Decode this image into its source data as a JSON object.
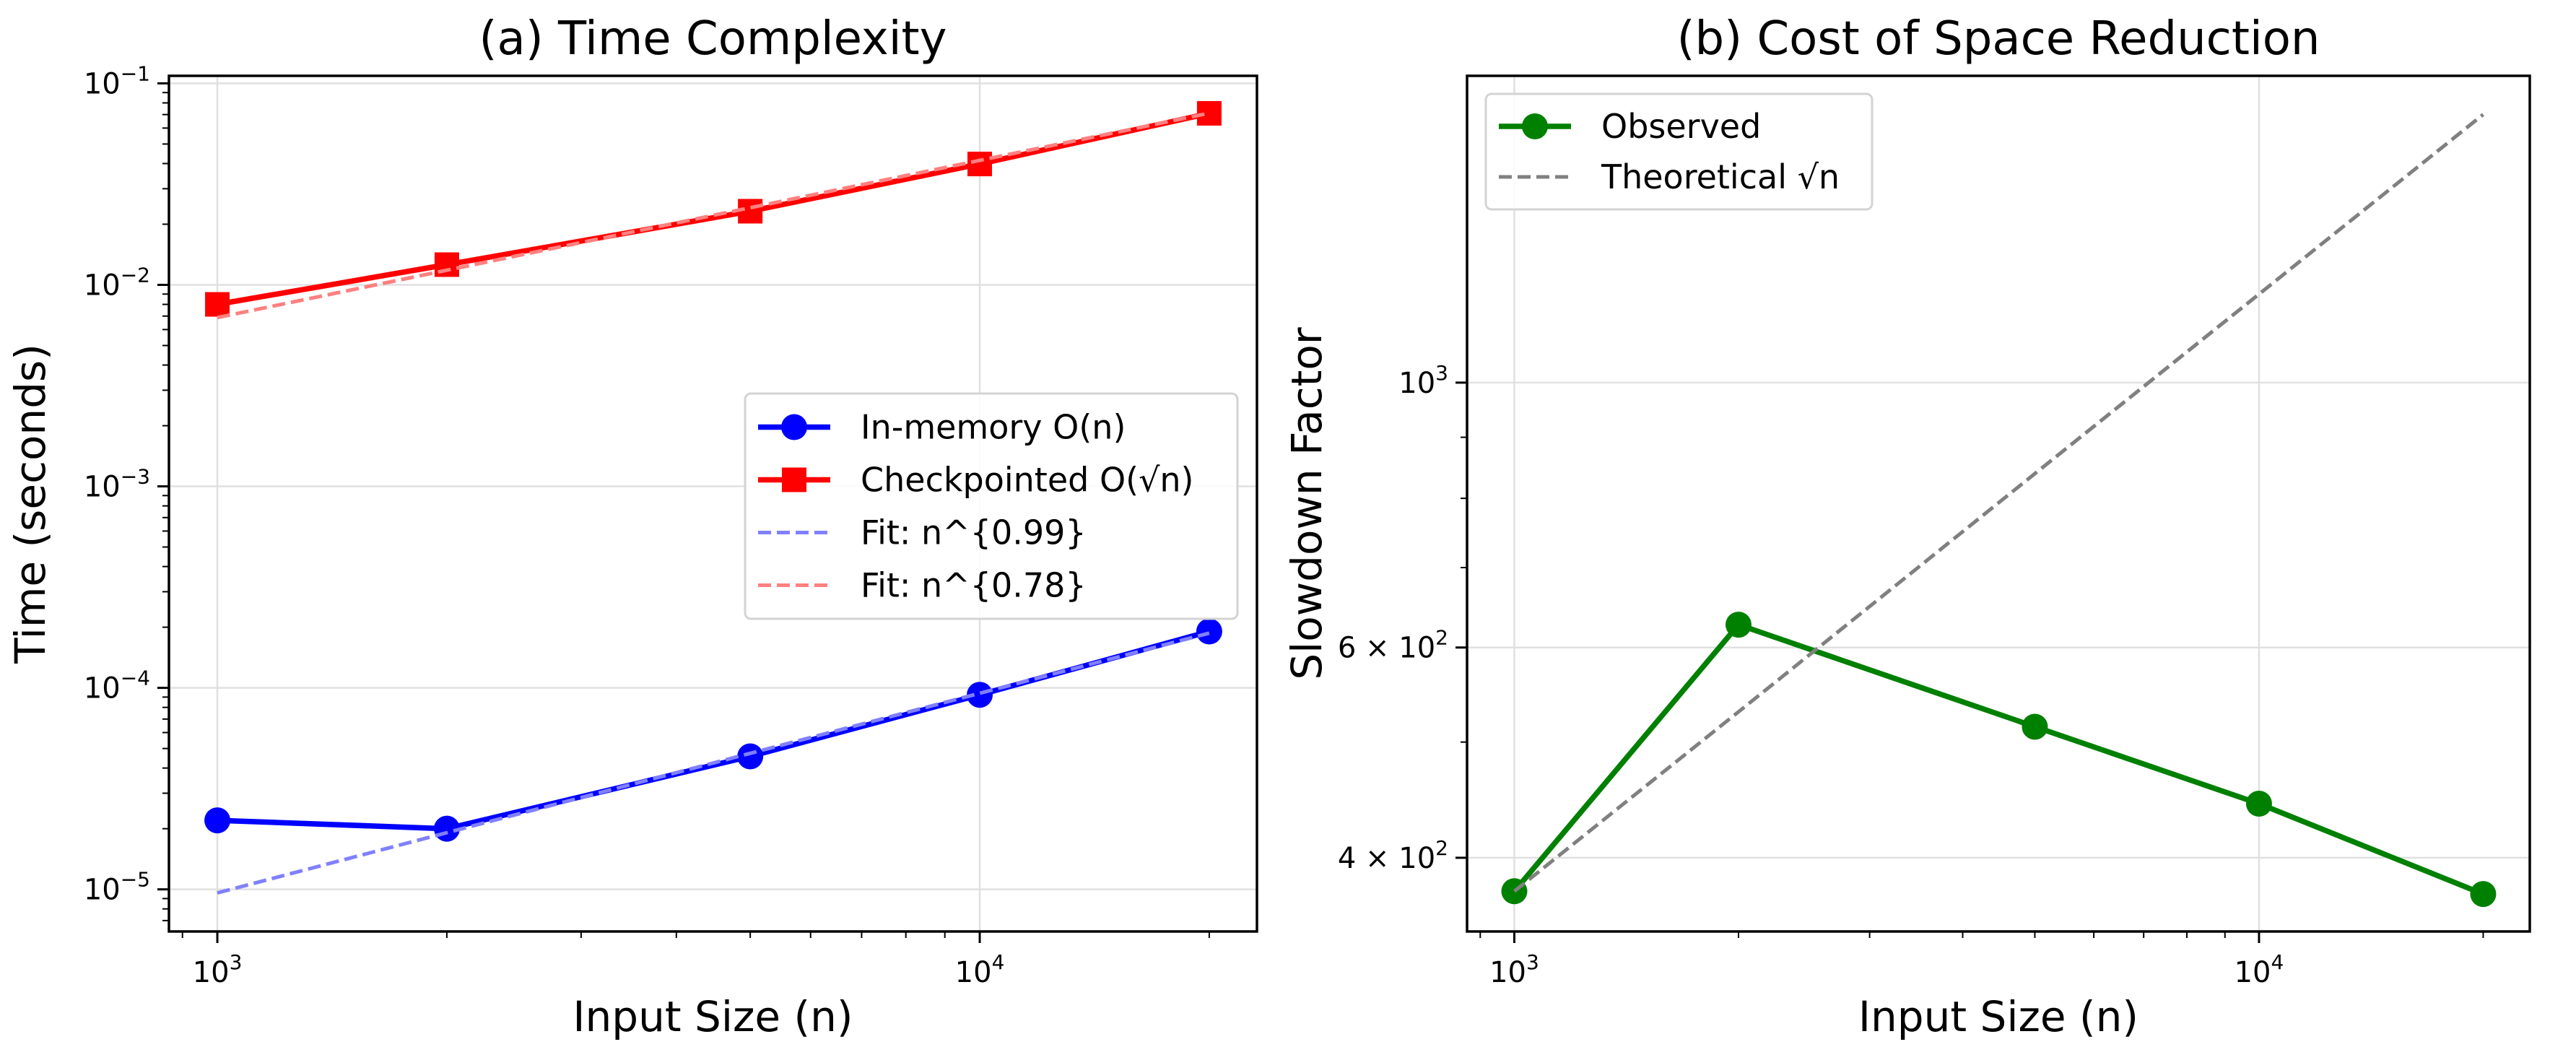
{
  "chart_data": [
    {
      "type": "line",
      "title": "(a) Time Complexity",
      "xlabel": "Input Size (n)",
      "ylabel": "Time (seconds)",
      "xscale": "log",
      "yscale": "log",
      "xlim": [
        864,
        23100
      ],
      "ylim": [
        6.18e-06,
        0.109
      ],
      "grid": true,
      "xticks": [
        {
          "value": 1000,
          "base": "10",
          "exp": "3"
        },
        {
          "value": 10000,
          "base": "10",
          "exp": "4"
        }
      ],
      "yticks": [
        {
          "value": 1e-05,
          "base": "10",
          "exp": "−5"
        },
        {
          "value": 0.0001,
          "base": "10",
          "exp": "−4"
        },
        {
          "value": 0.001,
          "base": "10",
          "exp": "−3"
        },
        {
          "value": 0.01,
          "base": "10",
          "exp": "−2"
        },
        {
          "value": 0.1,
          "base": "10",
          "exp": "−1"
        }
      ],
      "legend_position": "center-right",
      "x": [
        1000,
        2000,
        5000,
        10000,
        20000
      ],
      "series": [
        {
          "name": "In-memory O(n)",
          "style": "solid",
          "marker": "circle",
          "color": "#0000ff",
          "values": [
            2.2e-05,
            2e-05,
            4.57e-05,
            9.24e-05,
            0.0001905
          ]
        },
        {
          "name": "Checkpointed O(√n)",
          "style": "solid",
          "marker": "square",
          "color": "#ff0000",
          "values": [
            0.008,
            0.0126,
            0.0232,
            0.0398,
            0.071
          ]
        },
        {
          "name": "Fit: n^{0.99}",
          "style": "dashed",
          "marker": "none",
          "color": "#8080ff",
          "values": [
            9.6e-06,
            1.91e-05,
            4.73e-05,
            9.4e-05,
            0.000187
          ]
        },
        {
          "name": "Fit: n^{0.78}",
          "style": "dashed",
          "marker": "none",
          "color": "#ff8080",
          "values": [
            0.00688,
            0.01182,
            0.02413,
            0.04146,
            0.07114
          ]
        }
      ]
    },
    {
      "type": "line",
      "title": "(b) Cost of Space Reduction",
      "xlabel": "Input Size (n)",
      "ylabel": "Slowdown Factor",
      "xscale": "log",
      "yscale": "log",
      "xlim": [
        864,
        23100
      ],
      "ylim": [
        347,
        1807
      ],
      "grid": true,
      "xticks": [
        {
          "value": 1000,
          "base": "10",
          "exp": "3"
        },
        {
          "value": 10000,
          "base": "10",
          "exp": "4"
        }
      ],
      "yticks": [
        {
          "value": 400,
          "base": "4 × 10",
          "exp": "2"
        },
        {
          "value": 600,
          "base": "6 × 10",
          "exp": "2"
        },
        {
          "value": 1000,
          "base": "10",
          "exp": "3"
        }
      ],
      "legend_position": "upper-left",
      "x": [
        1000,
        2000,
        5000,
        10000,
        20000
      ],
      "series": [
        {
          "name": "Observed",
          "style": "solid",
          "marker": "circle",
          "color": "#008000",
          "values": [
            375,
            627,
            515,
            444,
            373
          ]
        },
        {
          "name": "Theoretical √n",
          "style": "dashed",
          "marker": "none",
          "color": "#808080",
          "values": [
            375,
            530,
            839,
            1186,
            1677
          ]
        }
      ]
    }
  ]
}
